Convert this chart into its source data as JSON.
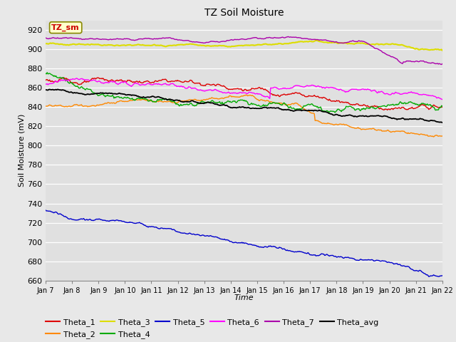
{
  "title": "TZ Soil Moisture",
  "ylabel": "Soil Moisture (mV)",
  "xlabel": "Time",
  "annotation_text": "TZ_sm",
  "annotation_color": "#cc0000",
  "annotation_bg": "#ffffcc",
  "annotation_border": "#888800",
  "ylim": [
    660,
    930
  ],
  "yticks": [
    660,
    680,
    700,
    720,
    740,
    760,
    780,
    800,
    820,
    840,
    860,
    880,
    900,
    920
  ],
  "x_labels": [
    "Jan 7",
    "Jan 8",
    "Jan 9",
    "Jan 10",
    "Jan 11",
    "Jan 12",
    "Jan 13",
    "Jan 14",
    "Jan 15",
    "Jan 16",
    "Jan 17",
    "Jan 18",
    "Jan 19",
    "Jan 20",
    "Jan 21",
    "Jan 22"
  ],
  "bg_color": "#e8e8e8",
  "plot_bg_color": "#e0e0e0",
  "grid_color": "#ffffff",
  "series": {
    "Theta_1": {
      "color": "#dd0000",
      "linewidth": 1.0
    },
    "Theta_2": {
      "color": "#ff8800",
      "linewidth": 1.0
    },
    "Theta_3": {
      "color": "#dddd00",
      "linewidth": 1.5
    },
    "Theta_4": {
      "color": "#00aa00",
      "linewidth": 1.0
    },
    "Theta_5": {
      "color": "#0000cc",
      "linewidth": 1.0
    },
    "Theta_6": {
      "color": "#ff00ff",
      "linewidth": 1.0
    },
    "Theta_7": {
      "color": "#aa00aa",
      "linewidth": 1.0
    },
    "Theta_avg": {
      "color": "#000000",
      "linewidth": 1.3
    }
  },
  "legend_row1": [
    "Theta_1",
    "Theta_2",
    "Theta_3",
    "Theta_4",
    "Theta_5",
    "Theta_6"
  ],
  "legend_row2": [
    "Theta_7",
    "Theta_avg"
  ]
}
